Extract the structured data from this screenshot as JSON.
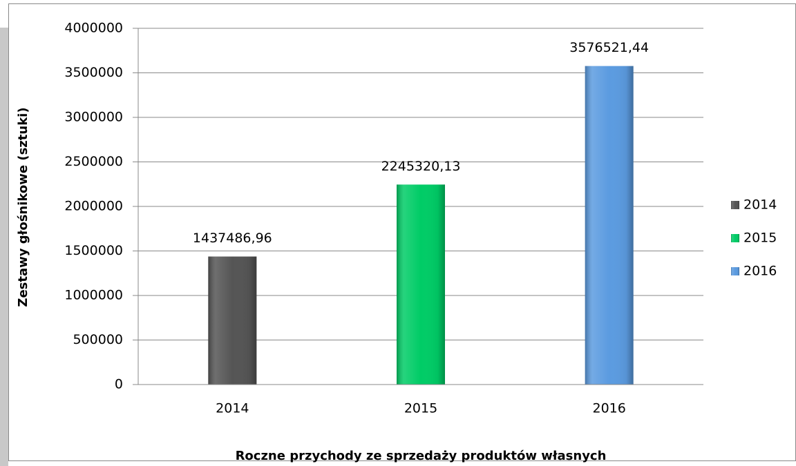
{
  "chart_data": {
    "type": "bar",
    "categories": [
      "2014",
      "2015",
      "2016"
    ],
    "values": [
      1437486.96,
      2245320.13,
      3576521.44
    ],
    "value_labels": [
      "1437486,96",
      "2245320,13",
      "3576521,44"
    ],
    "colors": [
      "#555555",
      "#00cc66",
      "#5b9be0"
    ],
    "ylim": [
      0,
      4000000
    ],
    "yticks": [
      0,
      500000,
      1000000,
      1500000,
      2000000,
      2500000,
      3000000,
      3500000,
      4000000
    ],
    "grid": true,
    "y_label": "Zestawy głośnikowe (sztuki)",
    "x_label": "Roczne przychody ze sprzedaży produktów własnych",
    "legend": "right"
  }
}
